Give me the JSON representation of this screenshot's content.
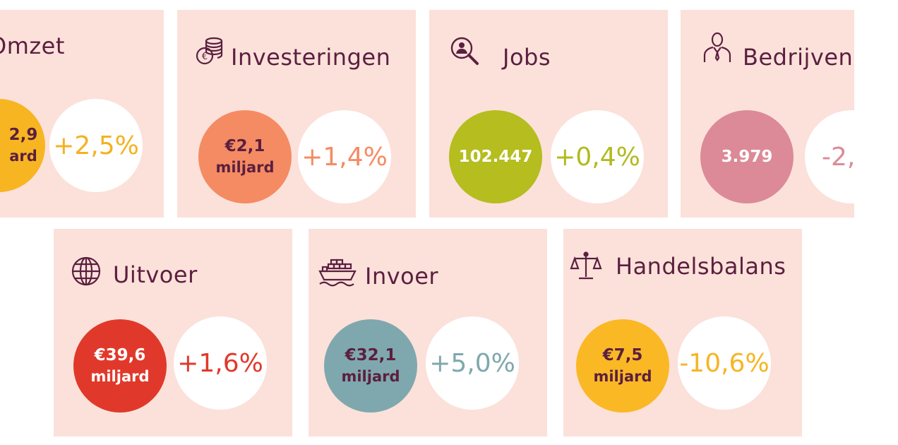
{
  "colors": {
    "card_bg": "#fbe1da",
    "title": "#5b1f3f",
    "omzet": "#f7b521",
    "investeringen": "#f58b63",
    "jobs": "#b5bd1f",
    "bedrijven": "#dc8a97",
    "uitvoer": "#e0392b",
    "invoer": "#7fa8ae",
    "handelsbalans": "#fbb825"
  },
  "cards": {
    "omzet": {
      "title": "Omzet",
      "icon": "euro-icon",
      "value": "2,9",
      "unit": "ard",
      "change": "+2,5%"
    },
    "investeringen": {
      "title": "Investeringen",
      "icon": "coins-stack-icon",
      "value": "€2,1",
      "unit": "miljard",
      "change": "+1,4%"
    },
    "jobs": {
      "title": "Jobs",
      "icon": "magnifier-person-icon",
      "value": "102.447",
      "unit": "",
      "change": "+0,4%"
    },
    "bedrijven": {
      "title": "Bedrijven",
      "icon": "businessperson-icon",
      "value": "3.979",
      "unit": "",
      "change": "-2,"
    },
    "uitvoer": {
      "title": "Uitvoer",
      "icon": "globe-icon",
      "value": "€39,6",
      "unit": "miljard",
      "change": "+1,6%"
    },
    "invoer": {
      "title": "Invoer",
      "icon": "cargo-ship-icon",
      "value": "€32,1",
      "unit": "miljard",
      "change": "+5,0%"
    },
    "handelsbalans": {
      "title": "Handelsbalans",
      "icon": "scales-icon",
      "value": "€7,5",
      "unit": "miljard",
      "change": "-10,6%"
    }
  }
}
